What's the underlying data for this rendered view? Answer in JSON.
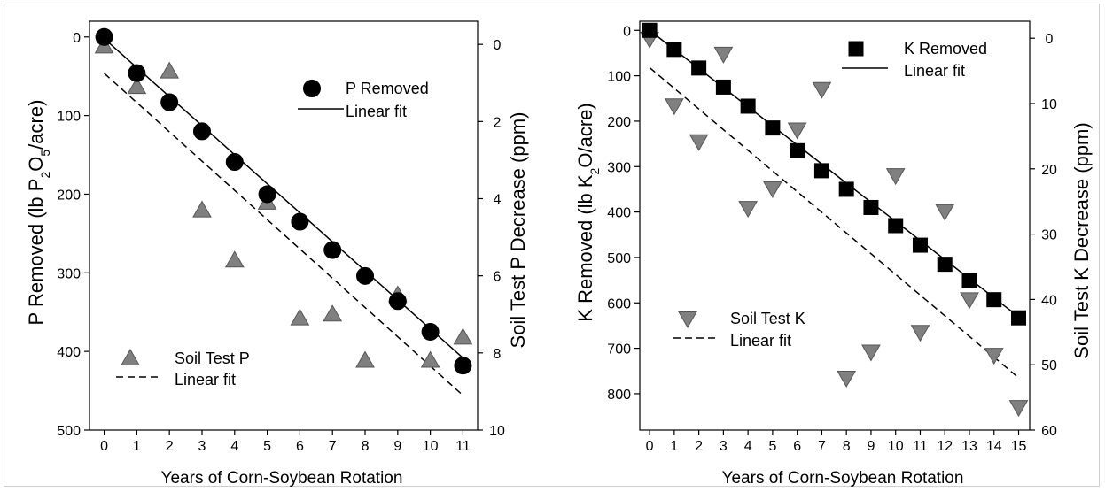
{
  "chart_data": [
    {
      "type": "scatter",
      "xlabel": "Years of Corn-Soybean Rotation",
      "ylabel_left_parts": [
        "P Removed (lb P",
        "2",
        "O",
        "5",
        "/acre)"
      ],
      "ylabel_right": "Soil Test P Decrease (ppm)",
      "x_ticks": [
        0,
        1,
        2,
        3,
        4,
        5,
        6,
        7,
        8,
        9,
        10,
        11
      ],
      "y_left_ticks": [
        0,
        100,
        200,
        300,
        400,
        500
      ],
      "y_right_ticks": [
        0,
        2,
        4,
        6,
        8,
        10
      ],
      "xlim": [
        -0.45,
        11.45
      ],
      "y_left_lim": [
        -20,
        500
      ],
      "y_right_lim": [
        -0.6,
        10
      ],
      "series": [
        {
          "name": "P Removed",
          "axis": "left",
          "marker": "circle",
          "color": "#000000",
          "x": [
            0,
            1,
            2,
            3,
            4,
            5,
            6,
            7,
            8,
            9,
            10,
            11
          ],
          "y": [
            0,
            46,
            83,
            120,
            159,
            200,
            235,
            271,
            304,
            336,
            375,
            418
          ]
        },
        {
          "name": "Soil Test P",
          "axis": "right",
          "marker": "triangle-up",
          "color": "#808080",
          "x": [
            0,
            1,
            2,
            3,
            4,
            5,
            6,
            7,
            8,
            9,
            10,
            11
          ],
          "y": [
            0.05,
            1.1,
            0.7,
            4.3,
            5.6,
            4.1,
            7.1,
            7.0,
            8.2,
            6.5,
            8.2,
            7.6
          ]
        }
      ],
      "fits": [
        {
          "name": "Linear fit",
          "axis": "left",
          "style": "solid",
          "from": [
            0,
            2
          ],
          "to": [
            11.1,
            412
          ]
        },
        {
          "name": "Linear fit",
          "axis": "right",
          "style": "dashed",
          "from": [
            0,
            0.75
          ],
          "to": [
            11,
            9.1
          ]
        }
      ],
      "legend": [
        {
          "label": "P Removed",
          "kind": "marker",
          "series": 0,
          "placement": "top-right"
        },
        {
          "label": "Linear fit",
          "kind": "solid",
          "placement": "top-right"
        },
        {
          "label": "Soil Test P",
          "kind": "marker",
          "series": 1,
          "placement": "bottom-left"
        },
        {
          "label": "Linear fit",
          "kind": "dashed",
          "placement": "bottom-left"
        }
      ]
    },
    {
      "type": "scatter",
      "xlabel": "Years of Corn-Soybean Rotation",
      "ylabel_left_parts": [
        "K Removed (lb K",
        "2",
        "O/acre)"
      ],
      "ylabel_right": "Soil Test K Decrease (ppm)",
      "x_ticks": [
        0,
        1,
        2,
        3,
        4,
        5,
        6,
        7,
        8,
        9,
        10,
        11,
        12,
        13,
        14,
        15
      ],
      "y_left_ticks": [
        0,
        100,
        200,
        300,
        400,
        500,
        600,
        700,
        800
      ],
      "y_right_ticks": [
        0,
        10,
        20,
        30,
        40,
        50,
        60
      ],
      "xlim": [
        -0.4,
        15.45
      ],
      "y_left_lim": [
        -20,
        880
      ],
      "y_right_lim": [
        -2.6,
        60
      ],
      "series": [
        {
          "name": "K Removed",
          "axis": "left",
          "marker": "square",
          "color": "#000000",
          "x": [
            0,
            1,
            2,
            3,
            4,
            5,
            6,
            7,
            8,
            9,
            10,
            11,
            12,
            13,
            14,
            15
          ],
          "y": [
            0,
            42,
            83,
            125,
            167,
            215,
            265,
            309,
            350,
            390,
            430,
            473,
            515,
            550,
            593,
            633
          ]
        },
        {
          "name": "Soil Test K",
          "axis": "right",
          "marker": "triangle-down",
          "color": "#808080",
          "x": [
            0,
            1,
            2,
            3,
            4,
            5,
            6,
            7,
            8,
            9,
            10,
            11,
            12,
            13,
            14,
            15
          ],
          "y": [
            0.1,
            10.3,
            15.8,
            2.4,
            26.0,
            23.0,
            14.0,
            7.8,
            52.0,
            48.0,
            21.0,
            45.0,
            26.5,
            40.0,
            48.5,
            56.5
          ]
        }
      ],
      "fits": [
        {
          "name": "Linear fit",
          "axis": "left",
          "style": "solid",
          "from": [
            0,
            0
          ],
          "to": [
            15.1,
            635
          ]
        },
        {
          "name": "Linear fit",
          "axis": "right",
          "style": "dashed",
          "from": [
            0,
            4.5
          ],
          "to": [
            15,
            52
          ]
        }
      ],
      "legend": [
        {
          "label": "K Removed",
          "kind": "marker",
          "series": 0,
          "placement": "top-right"
        },
        {
          "label": "Linear fit",
          "kind": "solid",
          "placement": "top-right"
        },
        {
          "label": "Soil Test K",
          "kind": "marker",
          "series": 1,
          "placement": "middle-left"
        },
        {
          "label": "Linear fit",
          "kind": "dashed",
          "placement": "middle-left"
        }
      ]
    }
  ]
}
